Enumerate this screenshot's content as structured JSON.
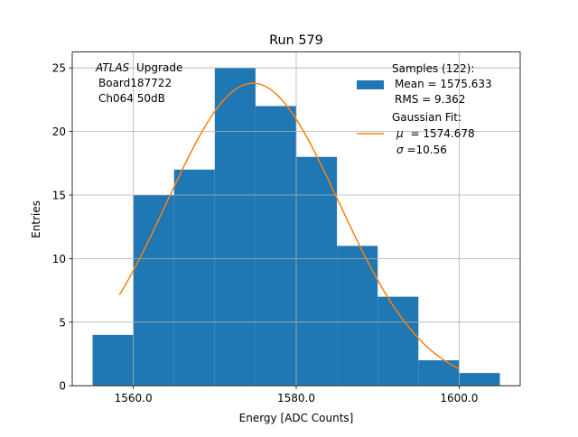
{
  "chart_data": {
    "type": "histogram",
    "title": "Run 579",
    "xlabel": "Energy [ADC Counts]",
    "ylabel": "Entries",
    "xlim": [
      1552.5,
      1607.5
    ],
    "ylim": [
      0,
      26.25
    ],
    "xticks": [
      1560,
      1580,
      1600
    ],
    "xtick_labels": [
      "1560.0",
      "1580.0",
      "1600.0"
    ],
    "yticks": [
      0,
      5,
      10,
      15,
      20,
      25
    ],
    "ytick_labels": [
      "0",
      "5",
      "10",
      "15",
      "20",
      "25"
    ],
    "grid": true,
    "bin_edges": [
      1555,
      1560,
      1565,
      1570,
      1575,
      1580,
      1585,
      1590,
      1595,
      1600,
      1605
    ],
    "counts": [
      4,
      15,
      17,
      25,
      22,
      18,
      11,
      7,
      2,
      1
    ],
    "fit": {
      "type": "gaussian",
      "amplitude": 23.8,
      "mu": 1574.678,
      "sigma": 10.56,
      "x_range": [
        1558.3,
        1600
      ]
    },
    "annotation_lines": [
      "Upgrade",
      "Board187722",
      "Ch064 50dB"
    ],
    "annotation_italic": "ATLAS",
    "legend_position": "top-right",
    "legend": {
      "samples_line1": "Samples (122):",
      "samples_line2": "Mean = 1575.633",
      "samples_line3": "RMS = 9.362",
      "fit_line1": "Gaussian Fit:",
      "fit_mu_symbol": "μ",
      "fit_line2": "= 1574.678",
      "fit_sigma_symbol": "σ",
      "fit_line3": "=10.56"
    },
    "colors": {
      "bars": "#1f77b4",
      "fit": "#ff7f0e",
      "grid": "#b0b0b0"
    }
  }
}
